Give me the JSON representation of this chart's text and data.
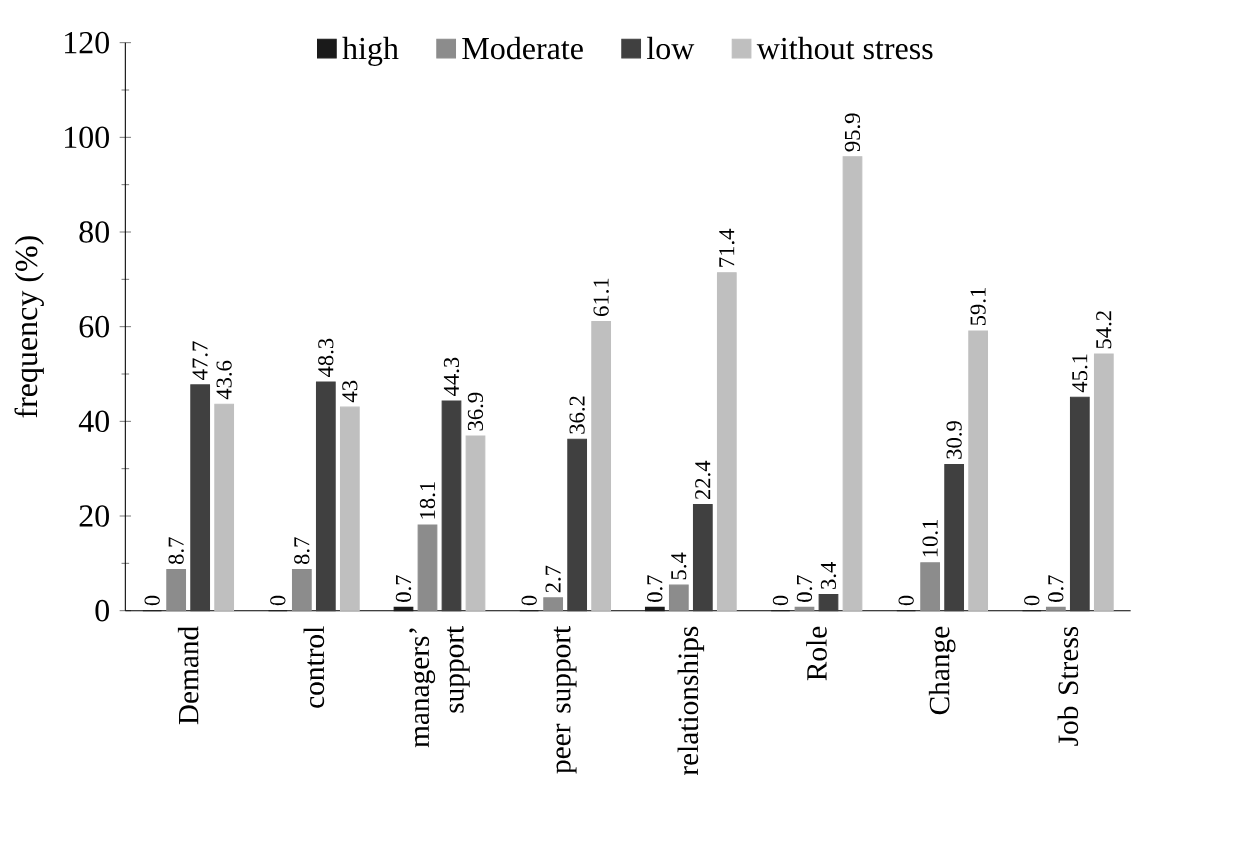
{
  "chart_data": {
    "type": "bar",
    "ylabel": "frequency (%)",
    "categories": [
      "Demand",
      "control",
      "managers’ support",
      "peer support",
      "relationships",
      "Role",
      "Change",
      "Job Stress"
    ],
    "series": [
      {
        "name": "high",
        "color": "#1a1a1a",
        "values": [
          0,
          0,
          0.7,
          0,
          0.7,
          0,
          0,
          0
        ]
      },
      {
        "name": "Moderate",
        "color": "#8c8c8c",
        "values": [
          8.7,
          8.7,
          18.1,
          2.7,
          5.4,
          0.7,
          10.1,
          0.7
        ]
      },
      {
        "name": "low",
        "color": "#404040",
        "values": [
          47.7,
          48.3,
          44.3,
          36.2,
          22.4,
          3.4,
          30.9,
          45.1
        ]
      },
      {
        "name": "without stress",
        "color": "#bfbfbf",
        "values": [
          43.6,
          43,
          36.9,
          61.1,
          71.4,
          95.9,
          59.1,
          54.2
        ]
      }
    ],
    "ylim": [
      0,
      120
    ],
    "yticks": [
      0,
      20,
      40,
      60,
      80,
      100,
      120
    ],
    "data_labels": true,
    "grid": false,
    "legend": "top"
  }
}
